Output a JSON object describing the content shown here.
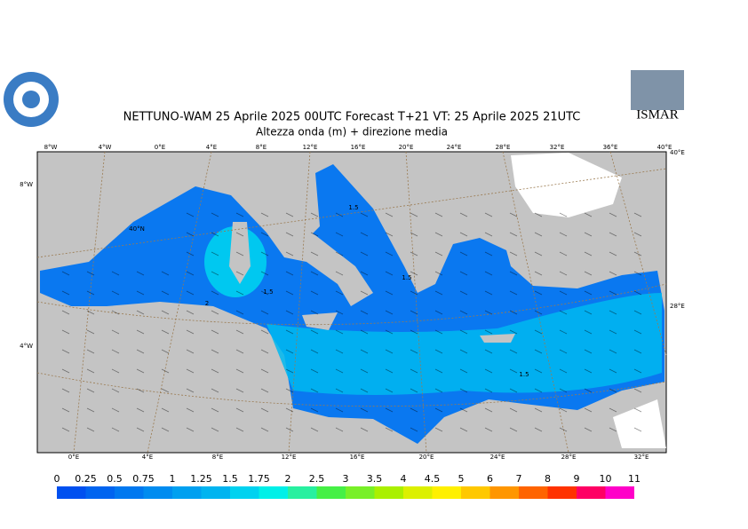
{
  "header": {
    "title": "NETTUNO-WAM  25   Aprile  2025 00UTC Forecast T+21 VT: 25   Aprile  2025 21UTC",
    "subtitle": "Altezza onda (m) + direzione media"
  },
  "logos": {
    "right": "ISMAR"
  },
  "map": {
    "lon_top": [
      "8°W",
      "4°W",
      "0°E",
      "4°E",
      "8°E",
      "12°E",
      "16°E",
      "20°E",
      "24°E",
      "28°E",
      "32°E",
      "36°E",
      "40°E"
    ],
    "lon_bottom": [
      "0°E",
      "4°E",
      "8°E",
      "12°E",
      "16°E",
      "20°E",
      "24°E",
      "28°E",
      "32°E"
    ],
    "lat_left": [
      "8°W",
      "4°W"
    ],
    "lat_right": [
      "40°E",
      "28°E"
    ],
    "lat_label": "40°N",
    "contour_labels": [
      "1.5",
      "1.5",
      "2",
      "1.5",
      "1.5"
    ]
  },
  "legend": {
    "levels": [
      0,
      0.25,
      0.5,
      0.75,
      1,
      1.25,
      1.5,
      1.75,
      2,
      2.5,
      3,
      3.5,
      4,
      4.5,
      5,
      6,
      7,
      8,
      9,
      10,
      11
    ],
    "colors": [
      "#0050f0",
      "#0064f0",
      "#0078f0",
      "#008cf0",
      "#00a0f0",
      "#00b4f0",
      "#00d2f0",
      "#00f0e8",
      "#28f0a0",
      "#46f046",
      "#78f028",
      "#aaf000",
      "#dcf000",
      "#fff000",
      "#ffc800",
      "#ff9600",
      "#ff6400",
      "#ff3200",
      "#ff0064",
      "#ff00c8"
    ]
  }
}
